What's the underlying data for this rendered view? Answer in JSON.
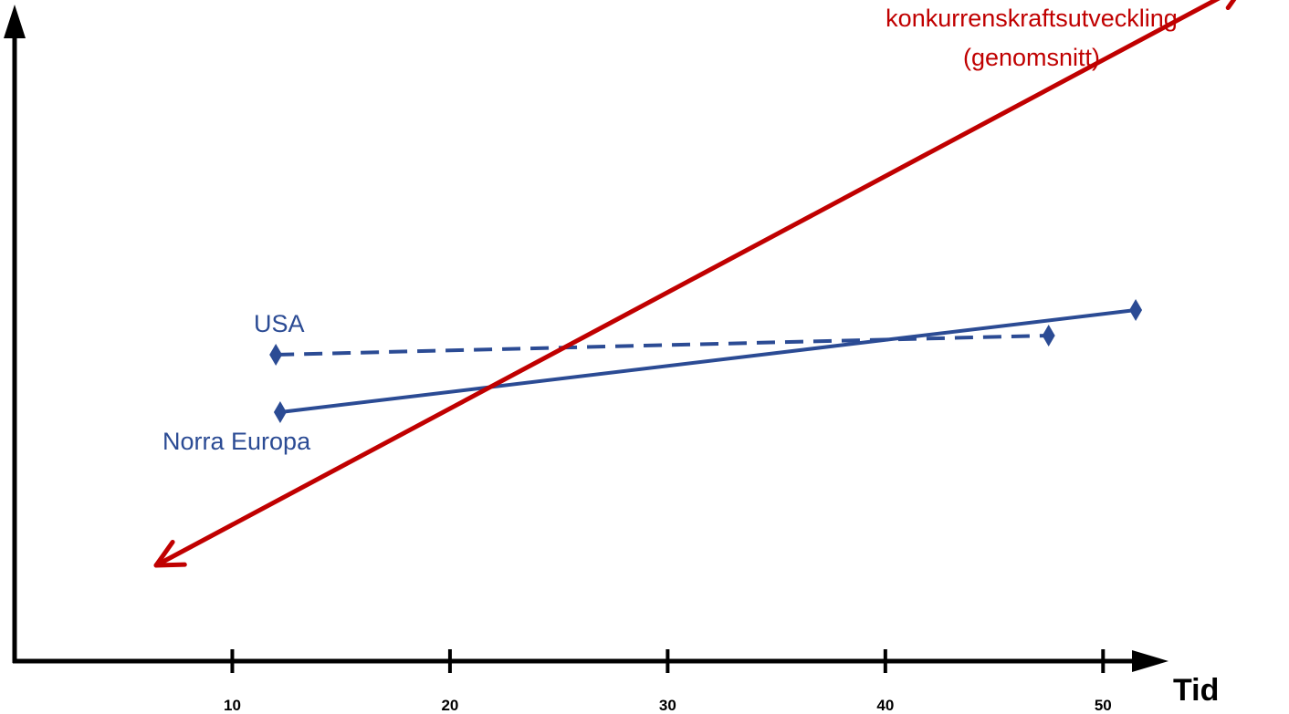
{
  "chart_data": {
    "type": "line",
    "title": "",
    "xlabel": "Tid",
    "ylabel": "",
    "xlim": [
      0,
      52
    ],
    "ylim": [
      0,
      100
    ],
    "grid": false,
    "x_ticks": [
      {
        "value": 10,
        "label": "10"
      },
      {
        "value": 20,
        "label": "20"
      },
      {
        "value": 30,
        "label": "30"
      },
      {
        "value": 40,
        "label": "40"
      },
      {
        "value": 50,
        "label": "50"
      }
    ],
    "series": [
      {
        "name": "USA",
        "color": "#2b4b94",
        "line_style": "dashed",
        "marker": "diamond",
        "points": [
          {
            "x": 12,
            "y": 48
          },
          {
            "x": 47.5,
            "y": 51
          }
        ]
      },
      {
        "name": "Norra Europa",
        "color": "#2b4b94",
        "line_style": "solid",
        "marker": "diamond",
        "points": [
          {
            "x": 12.2,
            "y": 39
          },
          {
            "x": 51.5,
            "y": 55
          }
        ]
      }
    ],
    "trend_line": {
      "label_lines": [
        "konkurrenskraftsutveckling",
        "(genomsnitt)"
      ],
      "color": "#c00000",
      "arrows": "both",
      "start": {
        "x": 6.5,
        "y": 15
      },
      "end": {
        "x": 56.5,
        "y": 106
      }
    }
  }
}
